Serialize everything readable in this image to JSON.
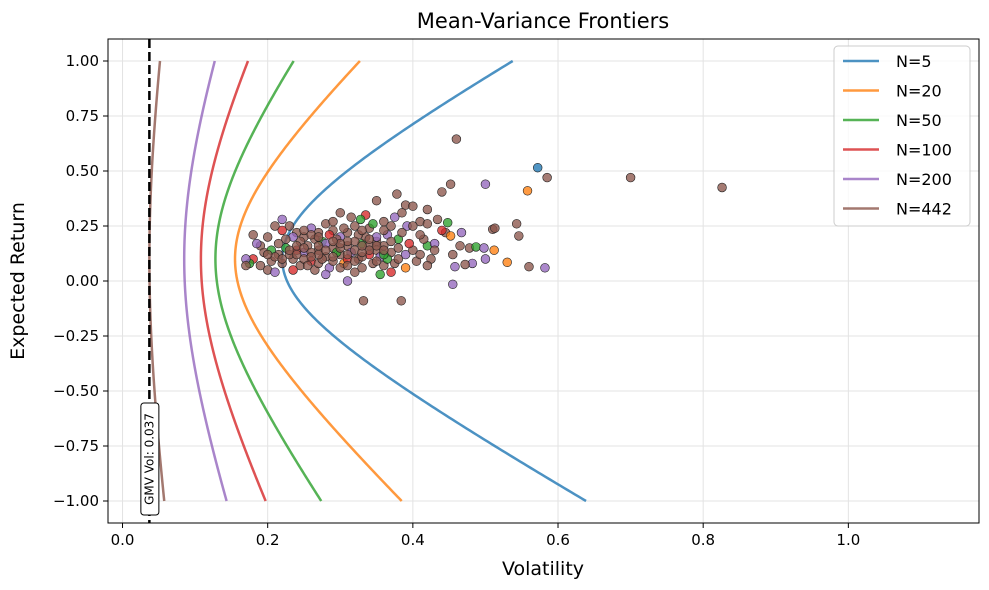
{
  "chart_data": {
    "type": "line",
    "title": "Mean-Variance Frontiers",
    "xlabel": "Volatility",
    "ylabel": "Expected Return",
    "xlim": [
      -0.02,
      1.18
    ],
    "ylim": [
      -1.1,
      1.1
    ],
    "xticks": [
      0.0,
      0.2,
      0.4,
      0.6,
      0.8,
      1.0
    ],
    "xtick_labels": [
      "0.0",
      "0.2",
      "0.4",
      "0.6",
      "0.8",
      "1.0"
    ],
    "yticks": [
      1.0,
      0.75,
      0.5,
      0.25,
      0.0,
      -0.25,
      -0.5,
      -0.75,
      -1.0
    ],
    "ytick_labels": [
      "1.00",
      "0.75",
      "0.50",
      "0.25",
      "0.00",
      "−0.25",
      "−0.50",
      "−0.75",
      "−1.00"
    ],
    "grid": true,
    "legend_position": "top-right",
    "series": [
      {
        "name": "N=5",
        "color": "#1f77b4",
        "mu0": 0.1,
        "sigma_min": 0.22,
        "k": 0.545,
        "return_range": [
          -1.0,
          1.0
        ]
      },
      {
        "name": "N=20",
        "color": "#ff7f0e",
        "mu0": 0.1,
        "sigma_min": 0.155,
        "k": 0.32,
        "return_range": [
          -1.0,
          1.0
        ]
      },
      {
        "name": "N=50",
        "color": "#2ca02c",
        "mu0": 0.1,
        "sigma_min": 0.128,
        "k": 0.22,
        "return_range": [
          -1.0,
          1.0
        ]
      },
      {
        "name": "N=100",
        "color": "#d62728",
        "mu0": 0.1,
        "sigma_min": 0.108,
        "k": 0.15,
        "return_range": [
          -1.0,
          1.0
        ]
      },
      {
        "name": "N=200",
        "color": "#9467bd",
        "mu0": 0.1,
        "sigma_min": 0.085,
        "k": 0.105,
        "return_range": [
          -1.0,
          1.0
        ]
      },
      {
        "name": "N=442",
        "color": "#8c564b",
        "mu0": 0.1,
        "sigma_min": 0.037,
        "k": 0.04,
        "return_range": [
          -1.0,
          1.0
        ]
      }
    ],
    "gmv_line": {
      "x": 0.037,
      "label": "GMV Vol: 0.037"
    },
    "scatter_points": [
      {
        "x": 0.572,
        "y": 0.515,
        "color": "#1f77b4"
      },
      {
        "x": 0.558,
        "y": 0.41,
        "color": "#ff7f0e"
      },
      {
        "x": 0.46,
        "y": 0.645,
        "color": "#8c564b"
      },
      {
        "x": 0.7,
        "y": 0.47,
        "color": "#8c564b"
      },
      {
        "x": 0.826,
        "y": 0.425,
        "color": "#8c564b"
      },
      {
        "x": 0.585,
        "y": 0.47,
        "color": "#8c564b"
      },
      {
        "x": 0.5,
        "y": 0.44,
        "color": "#9467bd"
      },
      {
        "x": 0.452,
        "y": 0.44,
        "color": "#8c564b"
      },
      {
        "x": 0.44,
        "y": 0.405,
        "color": "#8c564b"
      },
      {
        "x": 0.378,
        "y": 0.395,
        "color": "#8c564b"
      },
      {
        "x": 0.35,
        "y": 0.365,
        "color": "#8c564b"
      },
      {
        "x": 0.39,
        "y": 0.345,
        "color": "#8c564b"
      },
      {
        "x": 0.4,
        "y": 0.34,
        "color": "#8c564b"
      },
      {
        "x": 0.42,
        "y": 0.325,
        "color": "#8c564b"
      },
      {
        "x": 0.3,
        "y": 0.31,
        "color": "#8c564b"
      },
      {
        "x": 0.335,
        "y": 0.3,
        "color": "#d62728"
      },
      {
        "x": 0.328,
        "y": 0.28,
        "color": "#2ca02c"
      },
      {
        "x": 0.434,
        "y": 0.28,
        "color": "#8c564b"
      },
      {
        "x": 0.41,
        "y": 0.27,
        "color": "#8c564b"
      },
      {
        "x": 0.448,
        "y": 0.265,
        "color": "#2ca02c"
      },
      {
        "x": 0.392,
        "y": 0.25,
        "color": "#9467bd"
      },
      {
        "x": 0.445,
        "y": 0.22,
        "color": "#8c564b"
      },
      {
        "x": 0.467,
        "y": 0.22,
        "color": "#9467bd"
      },
      {
        "x": 0.452,
        "y": 0.205,
        "color": "#ff7f0e"
      },
      {
        "x": 0.478,
        "y": 0.15,
        "color": "#8c564b"
      },
      {
        "x": 0.51,
        "y": 0.235,
        "color": "#8c564b"
      },
      {
        "x": 0.513,
        "y": 0.24,
        "color": "#8c564b"
      },
      {
        "x": 0.487,
        "y": 0.155,
        "color": "#2ca02c"
      },
      {
        "x": 0.498,
        "y": 0.15,
        "color": "#9467bd"
      },
      {
        "x": 0.512,
        "y": 0.14,
        "color": "#ff7f0e"
      },
      {
        "x": 0.543,
        "y": 0.26,
        "color": "#8c564b"
      },
      {
        "x": 0.546,
        "y": 0.205,
        "color": "#8c564b"
      },
      {
        "x": 0.465,
        "y": 0.16,
        "color": "#8c564b"
      },
      {
        "x": 0.455,
        "y": 0.12,
        "color": "#8c564b"
      },
      {
        "x": 0.53,
        "y": 0.085,
        "color": "#ff7f0e"
      },
      {
        "x": 0.5,
        "y": 0.1,
        "color": "#9467bd"
      },
      {
        "x": 0.482,
        "y": 0.08,
        "color": "#9467bd"
      },
      {
        "x": 0.472,
        "y": 0.075,
        "color": "#8c564b"
      },
      {
        "x": 0.458,
        "y": 0.065,
        "color": "#9467bd"
      },
      {
        "x": 0.56,
        "y": 0.065,
        "color": "#8c564b"
      },
      {
        "x": 0.582,
        "y": 0.06,
        "color": "#9467bd"
      },
      {
        "x": 0.455,
        "y": -0.015,
        "color": "#9467bd"
      },
      {
        "x": 0.332,
        "y": -0.09,
        "color": "#8c564b"
      },
      {
        "x": 0.384,
        "y": -0.09,
        "color": "#8c564b"
      },
      {
        "x": 0.31,
        "y": 0.0,
        "color": "#9467bd"
      },
      {
        "x": 0.355,
        "y": 0.03,
        "color": "#2ca02c"
      },
      {
        "x": 0.37,
        "y": 0.04,
        "color": "#d62728"
      },
      {
        "x": 0.39,
        "y": 0.06,
        "color": "#ff7f0e"
      },
      {
        "x": 0.405,
        "y": 0.09,
        "color": "#8c564b"
      },
      {
        "x": 0.425,
        "y": 0.1,
        "color": "#8c564b"
      },
      {
        "x": 0.42,
        "y": 0.07,
        "color": "#8c564b"
      },
      {
        "x": 0.42,
        "y": 0.16,
        "color": "#2ca02c"
      },
      {
        "x": 0.43,
        "y": 0.17,
        "color": "#9467bd"
      },
      {
        "x": 0.415,
        "y": 0.19,
        "color": "#8c564b"
      },
      {
        "x": 0.38,
        "y": 0.19,
        "color": "#2ca02c"
      },
      {
        "x": 0.36,
        "y": 0.16,
        "color": "#8c564b"
      },
      {
        "x": 0.37,
        "y": 0.13,
        "color": "#8c564b"
      },
      {
        "x": 0.39,
        "y": 0.12,
        "color": "#9467bd"
      },
      {
        "x": 0.4,
        "y": 0.14,
        "color": "#8c564b"
      },
      {
        "x": 0.385,
        "y": 0.22,
        "color": "#8c564b"
      },
      {
        "x": 0.365,
        "y": 0.21,
        "color": "#9467bd"
      },
      {
        "x": 0.35,
        "y": 0.18,
        "color": "#8c564b"
      },
      {
        "x": 0.34,
        "y": 0.24,
        "color": "#8c564b"
      },
      {
        "x": 0.32,
        "y": 0.25,
        "color": "#8c564b"
      },
      {
        "x": 0.31,
        "y": 0.22,
        "color": "#8c564b"
      },
      {
        "x": 0.3,
        "y": 0.2,
        "color": "#9467bd"
      },
      {
        "x": 0.29,
        "y": 0.23,
        "color": "#8c564b"
      },
      {
        "x": 0.28,
        "y": 0.26,
        "color": "#8c564b"
      },
      {
        "x": 0.27,
        "y": 0.22,
        "color": "#8c564b"
      },
      {
        "x": 0.26,
        "y": 0.24,
        "color": "#9467bd"
      },
      {
        "x": 0.25,
        "y": 0.2,
        "color": "#8c564b"
      },
      {
        "x": 0.24,
        "y": 0.22,
        "color": "#8c564b"
      },
      {
        "x": 0.23,
        "y": 0.25,
        "color": "#8c564b"
      },
      {
        "x": 0.22,
        "y": 0.28,
        "color": "#9467bd"
      },
      {
        "x": 0.21,
        "y": 0.25,
        "color": "#8c564b"
      },
      {
        "x": 0.22,
        "y": 0.23,
        "color": "#d62728"
      },
      {
        "x": 0.2,
        "y": 0.2,
        "color": "#8c564b"
      },
      {
        "x": 0.19,
        "y": 0.16,
        "color": "#8c564b"
      },
      {
        "x": 0.18,
        "y": 0.21,
        "color": "#8c564b"
      },
      {
        "x": 0.185,
        "y": 0.17,
        "color": "#9467bd"
      },
      {
        "x": 0.195,
        "y": 0.13,
        "color": "#8c564b"
      },
      {
        "x": 0.18,
        "y": 0.1,
        "color": "#d62728"
      },
      {
        "x": 0.19,
        "y": 0.07,
        "color": "#8c564b"
      },
      {
        "x": 0.175,
        "y": 0.08,
        "color": "#2ca02c"
      },
      {
        "x": 0.17,
        "y": 0.1,
        "color": "#9467bd"
      },
      {
        "x": 0.17,
        "y": 0.07,
        "color": "#8c564b"
      },
      {
        "x": 0.2,
        "y": 0.05,
        "color": "#8c564b"
      },
      {
        "x": 0.21,
        "y": 0.04,
        "color": "#9467bd"
      },
      {
        "x": 0.205,
        "y": 0.09,
        "color": "#8c564b"
      },
      {
        "x": 0.215,
        "y": 0.12,
        "color": "#8c564b"
      },
      {
        "x": 0.225,
        "y": 0.15,
        "color": "#2ca02c"
      },
      {
        "x": 0.235,
        "y": 0.1,
        "color": "#8c564b"
      },
      {
        "x": 0.245,
        "y": 0.07,
        "color": "#8c564b"
      },
      {
        "x": 0.25,
        "y": 0.13,
        "color": "#9467bd"
      },
      {
        "x": 0.255,
        "y": 0.16,
        "color": "#8c564b"
      },
      {
        "x": 0.26,
        "y": 0.09,
        "color": "#d62728"
      },
      {
        "x": 0.265,
        "y": 0.05,
        "color": "#8c564b"
      },
      {
        "x": 0.27,
        "y": 0.14,
        "color": "#8c564b"
      },
      {
        "x": 0.275,
        "y": 0.18,
        "color": "#2ca02c"
      },
      {
        "x": 0.28,
        "y": 0.11,
        "color": "#8c564b"
      },
      {
        "x": 0.285,
        "y": 0.06,
        "color": "#9467bd"
      },
      {
        "x": 0.29,
        "y": 0.15,
        "color": "#8c564b"
      },
      {
        "x": 0.295,
        "y": 0.19,
        "color": "#8c564b"
      },
      {
        "x": 0.3,
        "y": 0.12,
        "color": "#8c564b"
      },
      {
        "x": 0.305,
        "y": 0.08,
        "color": "#ff7f0e"
      },
      {
        "x": 0.31,
        "y": 0.16,
        "color": "#8c564b"
      },
      {
        "x": 0.315,
        "y": 0.13,
        "color": "#9467bd"
      },
      {
        "x": 0.32,
        "y": 0.04,
        "color": "#8c564b"
      },
      {
        "x": 0.325,
        "y": 0.1,
        "color": "#8c564b"
      },
      {
        "x": 0.33,
        "y": 0.17,
        "color": "#2ca02c"
      },
      {
        "x": 0.335,
        "y": 0.2,
        "color": "#8c564b"
      },
      {
        "x": 0.34,
        "y": 0.12,
        "color": "#d62728"
      },
      {
        "x": 0.345,
        "y": 0.08,
        "color": "#8c564b"
      },
      {
        "x": 0.35,
        "y": 0.14,
        "color": "#8c564b"
      },
      {
        "x": 0.355,
        "y": 0.11,
        "color": "#9467bd"
      },
      {
        "x": 0.36,
        "y": 0.07,
        "color": "#8c564b"
      },
      {
        "x": 0.365,
        "y": 0.1,
        "color": "#2ca02c"
      },
      {
        "x": 0.375,
        "y": 0.08,
        "color": "#8c564b"
      },
      {
        "x": 0.38,
        "y": 0.15,
        "color": "#8c564b"
      },
      {
        "x": 0.395,
        "y": 0.17,
        "color": "#d62728"
      },
      {
        "x": 0.41,
        "y": 0.12,
        "color": "#8c564b"
      },
      {
        "x": 0.43,
        "y": 0.14,
        "color": "#8c564b"
      },
      {
        "x": 0.44,
        "y": 0.23,
        "color": "#d62728"
      },
      {
        "x": 0.4,
        "y": 0.25,
        "color": "#8c564b"
      },
      {
        "x": 0.36,
        "y": 0.27,
        "color": "#8c564b"
      },
      {
        "x": 0.375,
        "y": 0.29,
        "color": "#9467bd"
      },
      {
        "x": 0.385,
        "y": 0.31,
        "color": "#8c564b"
      },
      {
        "x": 0.315,
        "y": 0.29,
        "color": "#8c564b"
      },
      {
        "x": 0.345,
        "y": 0.26,
        "color": "#2ca02c"
      },
      {
        "x": 0.325,
        "y": 0.21,
        "color": "#8c564b"
      },
      {
        "x": 0.305,
        "y": 0.24,
        "color": "#8c564b"
      },
      {
        "x": 0.285,
        "y": 0.21,
        "color": "#d62728"
      },
      {
        "x": 0.265,
        "y": 0.19,
        "color": "#8c564b"
      },
      {
        "x": 0.245,
        "y": 0.18,
        "color": "#8c564b"
      },
      {
        "x": 0.235,
        "y": 0.2,
        "color": "#9467bd"
      },
      {
        "x": 0.225,
        "y": 0.19,
        "color": "#8c564b"
      },
      {
        "x": 0.215,
        "y": 0.17,
        "color": "#8c564b"
      },
      {
        "x": 0.205,
        "y": 0.14,
        "color": "#2ca02c"
      },
      {
        "x": 0.23,
        "y": 0.12,
        "color": "#8c564b"
      },
      {
        "x": 0.24,
        "y": 0.14,
        "color": "#d62728"
      },
      {
        "x": 0.25,
        "y": 0.1,
        "color": "#8c564b"
      },
      {
        "x": 0.26,
        "y": 0.13,
        "color": "#8c564b"
      },
      {
        "x": 0.27,
        "y": 0.08,
        "color": "#8c564b"
      },
      {
        "x": 0.28,
        "y": 0.03,
        "color": "#9467bd"
      },
      {
        "x": 0.29,
        "y": 0.09,
        "color": "#8c564b"
      },
      {
        "x": 0.3,
        "y": 0.06,
        "color": "#8c564b"
      },
      {
        "x": 0.31,
        "y": 0.1,
        "color": "#d62728"
      },
      {
        "x": 0.32,
        "y": 0.14,
        "color": "#8c564b"
      },
      {
        "x": 0.33,
        "y": 0.11,
        "color": "#8c564b"
      },
      {
        "x": 0.34,
        "y": 0.16,
        "color": "#8c564b"
      },
      {
        "x": 0.35,
        "y": 0.2,
        "color": "#9467bd"
      },
      {
        "x": 0.36,
        "y": 0.23,
        "color": "#8c564b"
      },
      {
        "x": 0.37,
        "y": 0.18,
        "color": "#8c564b"
      },
      {
        "x": 0.33,
        "y": 0.06,
        "color": "#8c564b"
      },
      {
        "x": 0.295,
        "y": 0.13,
        "color": "#2ca02c"
      },
      {
        "x": 0.275,
        "y": 0.1,
        "color": "#8c564b"
      },
      {
        "x": 0.255,
        "y": 0.07,
        "color": "#8c564b"
      },
      {
        "x": 0.235,
        "y": 0.05,
        "color": "#d62728"
      },
      {
        "x": 0.22,
        "y": 0.08,
        "color": "#8c564b"
      },
      {
        "x": 0.21,
        "y": 0.11,
        "color": "#8c564b"
      },
      {
        "x": 0.24,
        "y": 0.16,
        "color": "#8c564b"
      },
      {
        "x": 0.26,
        "y": 0.21,
        "color": "#8c564b"
      },
      {
        "x": 0.28,
        "y": 0.17,
        "color": "#9467bd"
      },
      {
        "x": 0.3,
        "y": 0.15,
        "color": "#8c564b"
      },
      {
        "x": 0.32,
        "y": 0.18,
        "color": "#8c564b"
      },
      {
        "x": 0.34,
        "y": 0.14,
        "color": "#8c564b"
      },
      {
        "x": 0.36,
        "y": 0.12,
        "color": "#2ca02c"
      },
      {
        "x": 0.38,
        "y": 0.1,
        "color": "#8c564b"
      },
      {
        "x": 0.35,
        "y": 0.09,
        "color": "#8c564b"
      },
      {
        "x": 0.31,
        "y": 0.07,
        "color": "#8c564b"
      },
      {
        "x": 0.27,
        "y": 0.12,
        "color": "#8c564b"
      },
      {
        "x": 0.23,
        "y": 0.14,
        "color": "#8c564b"
      },
      {
        "x": 0.25,
        "y": 0.23,
        "color": "#8c564b"
      },
      {
        "x": 0.29,
        "y": 0.27,
        "color": "#8c564b"
      },
      {
        "x": 0.33,
        "y": 0.23,
        "color": "#8c564b"
      },
      {
        "x": 0.37,
        "y": 0.25,
        "color": "#8c564b"
      },
      {
        "x": 0.41,
        "y": 0.21,
        "color": "#8c564b"
      },
      {
        "x": 0.42,
        "y": 0.26,
        "color": "#8c564b"
      },
      {
        "x": 0.31,
        "y": 0.18,
        "color": "#8c564b"
      },
      {
        "x": 0.29,
        "y": 0.11,
        "color": "#8c564b"
      },
      {
        "x": 0.27,
        "y": 0.16,
        "color": "#8c564b"
      },
      {
        "x": 0.33,
        "y": 0.13,
        "color": "#8c564b"
      },
      {
        "x": 0.35,
        "y": 0.16,
        "color": "#8c564b"
      },
      {
        "x": 0.32,
        "y": 0.09,
        "color": "#8c564b"
      },
      {
        "x": 0.28,
        "y": 0.14,
        "color": "#8c564b"
      },
      {
        "x": 0.26,
        "y": 0.11,
        "color": "#8c564b"
      },
      {
        "x": 0.24,
        "y": 0.12,
        "color": "#8c564b"
      },
      {
        "x": 0.3,
        "y": 0.17,
        "color": "#8c564b"
      },
      {
        "x": 0.34,
        "y": 0.19,
        "color": "#8c564b"
      },
      {
        "x": 0.36,
        "y": 0.14,
        "color": "#8c564b"
      },
      {
        "x": 0.22,
        "y": 0.1,
        "color": "#8c564b"
      },
      {
        "x": 0.2,
        "y": 0.12,
        "color": "#8c564b"
      },
      {
        "x": 0.31,
        "y": 0.12,
        "color": "#8c564b"
      },
      {
        "x": 0.29,
        "y": 0.18,
        "color": "#8c564b"
      },
      {
        "x": 0.27,
        "y": 0.2,
        "color": "#8c564b"
      },
      {
        "x": 0.25,
        "y": 0.15,
        "color": "#8c564b"
      },
      {
        "x": 0.33,
        "y": 0.16,
        "color": "#8c564b"
      }
    ]
  }
}
